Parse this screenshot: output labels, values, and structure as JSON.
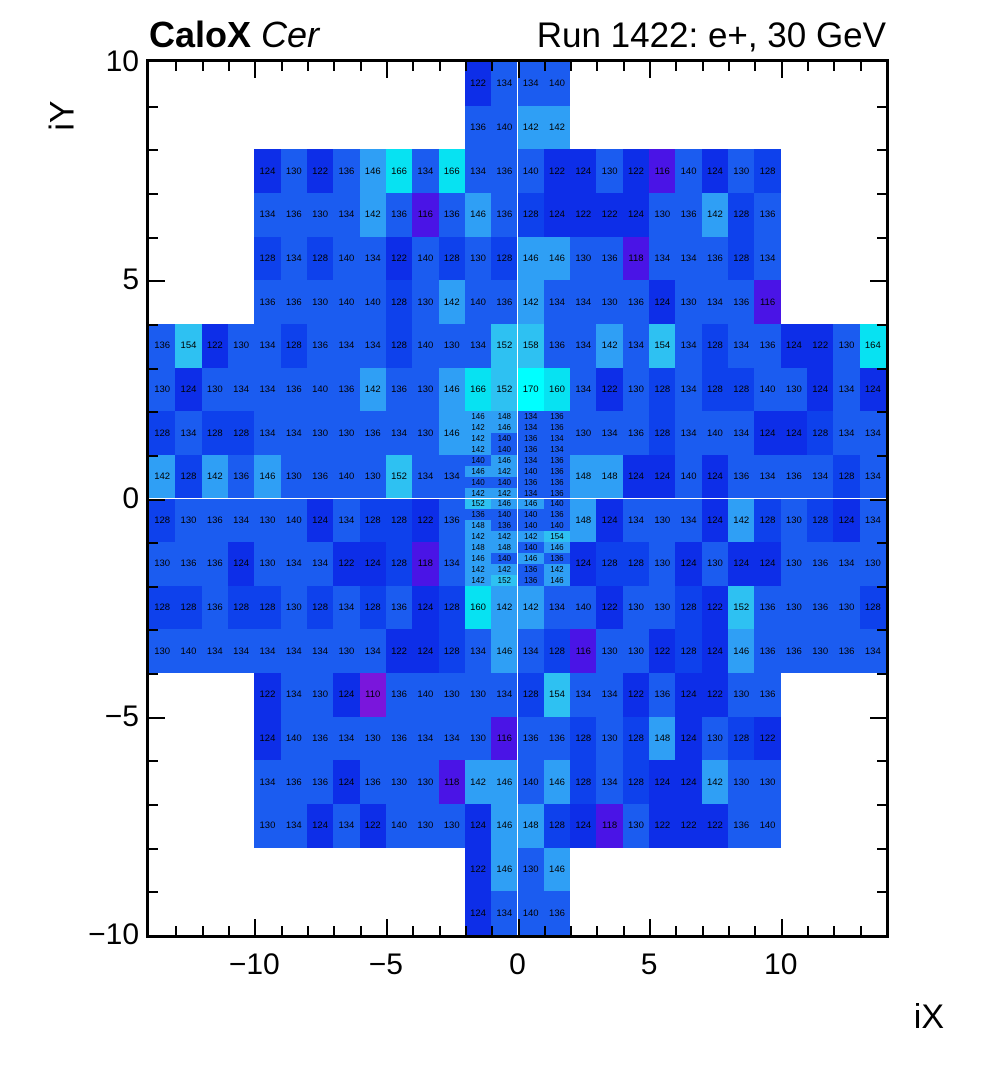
{
  "header": {
    "experiment": "CaloX",
    "detector": "Cer",
    "run_info": "Run 1422: e+, 30 GeV"
  },
  "chart_data": {
    "type": "heatmap",
    "title": "Run 1422: e+, 30 GeV",
    "xlabel": "iX",
    "ylabel": "iY",
    "xlim": [
      -14,
      14
    ],
    "ylim": [
      -10,
      10
    ],
    "grid": false,
    "x_tick_values": [
      -10,
      -5,
      0,
      5,
      10
    ],
    "x_tick_labels": [
      "−10",
      "−5",
      "0",
      "5",
      "10"
    ],
    "y_tick_values": [
      10,
      5,
      0,
      -5,
      -10
    ],
    "y_tick_labels": [
      "10",
      "5",
      "0",
      "−5",
      "−10"
    ],
    "value_text_color": "#000000",
    "frame_color": "#000000",
    "palette": [
      {
        "max": 113,
        "color": "#7A16DC"
      },
      {
        "max": 120,
        "color": "#4A14E6"
      },
      {
        "max": 126,
        "color": "#0D2EE8"
      },
      {
        "max": 129,
        "color": "#0E41EC"
      },
      {
        "max": 141,
        "color": "#1B5CF0"
      },
      {
        "max": 150,
        "color": "#2F9FF5"
      },
      {
        "max": 159,
        "color": "#2EC1F2"
      },
      {
        "max": 167,
        "color": "#07E2F2"
      },
      {
        "max": 9999,
        "color": "#00FFFF"
      }
    ],
    "regions": [
      {
        "name": "top-center",
        "x0": -2,
        "y0": 10,
        "cell_w": 1,
        "cell_h": 1,
        "rows": [
          [
            122,
            134,
            134,
            140
          ],
          [
            136,
            140,
            142,
            142
          ]
        ]
      },
      {
        "name": "upper-band",
        "x0": -10,
        "y0": 8,
        "cell_w": 1,
        "cell_h": 1,
        "rows": [
          [
            124,
            130,
            122,
            136,
            146,
            166,
            134,
            166,
            134,
            136,
            140,
            122,
            124,
            130,
            122,
            116,
            140,
            124,
            130,
            128
          ],
          [
            134,
            136,
            130,
            134,
            142,
            136,
            116,
            136,
            146,
            136,
            128,
            124,
            122,
            122,
            124,
            130,
            136,
            142,
            128,
            136
          ],
          [
            128,
            134,
            128,
            140,
            134,
            122,
            140,
            128,
            130,
            128,
            146,
            146,
            130,
            136,
            118,
            134,
            134,
            136,
            128,
            134
          ],
          [
            136,
            136,
            130,
            140,
            140,
            128,
            130,
            142,
            140,
            136,
            142,
            134,
            134,
            130,
            136,
            124,
            130,
            134,
            136,
            116
          ]
        ]
      },
      {
        "name": "wide-band-top",
        "x0": -14,
        "y0": 4,
        "cell_w": 1,
        "cell_h": 1,
        "rows": [
          [
            136,
            154,
            122,
            130,
            134,
            128,
            136,
            134,
            134,
            128,
            140,
            130,
            134,
            152,
            158,
            136,
            134,
            142,
            134,
            154,
            134,
            128,
            134,
            136,
            124,
            122,
            130,
            164
          ],
          [
            130,
            124,
            130,
            134,
            134,
            136,
            140,
            136,
            142,
            136,
            130,
            146,
            166,
            152,
            170,
            160,
            134,
            122,
            130,
            128,
            134,
            128,
            128,
            140,
            130,
            124,
            134,
            124
          ]
        ]
      },
      {
        "name": "mid-left",
        "x0": -14,
        "y0": 2,
        "cell_w": 1,
        "cell_h": 1,
        "rows": [
          [
            128,
            134,
            128,
            128,
            134,
            134,
            130,
            130,
            136,
            134,
            130,
            146
          ],
          [
            142,
            128,
            142,
            136,
            146,
            130,
            136,
            140,
            130,
            152,
            134,
            134
          ],
          [
            128,
            130,
            136,
            134,
            130,
            140,
            124,
            134,
            128,
            128,
            122,
            136
          ],
          [
            130,
            136,
            136,
            124,
            130,
            134,
            134,
            122,
            124,
            128,
            118,
            134
          ]
        ]
      },
      {
        "name": "mid-right",
        "x0": 2,
        "y0": 2,
        "cell_w": 1,
        "cell_h": 1,
        "rows": [
          [
            130,
            134,
            136,
            128,
            134,
            140,
            134,
            124,
            124,
            128,
            134,
            134
          ],
          [
            148,
            148,
            124,
            124,
            140,
            124,
            136,
            134,
            136,
            134,
            128,
            134
          ],
          [
            148,
            124,
            134,
            130,
            134,
            124,
            142,
            128,
            130,
            128,
            124,
            134
          ],
          [
            124,
            128,
            128,
            130,
            124,
            130,
            124,
            124,
            130,
            136,
            134,
            130
          ]
        ]
      },
      {
        "name": "center-fine",
        "x0": -2,
        "y0": 2,
        "cell_w": 1,
        "cell_h": 0.25,
        "rows": [
          [
            146,
            148,
            134,
            136
          ],
          [
            142,
            146,
            134,
            136
          ],
          [
            142,
            140,
            136,
            134
          ],
          [
            142,
            140,
            136,
            134
          ],
          [
            140,
            146,
            134,
            136
          ],
          [
            146,
            142,
            140,
            136
          ],
          [
            140,
            140,
            136,
            136
          ],
          [
            142,
            142,
            134,
            136
          ],
          [
            152,
            146,
            146,
            140
          ],
          [
            136,
            140,
            140,
            136
          ],
          [
            148,
            136,
            140,
            140
          ],
          [
            142,
            142,
            142,
            154
          ],
          [
            148,
            148,
            140,
            146
          ],
          [
            146,
            140,
            146,
            136
          ],
          [
            142,
            142,
            136,
            142
          ],
          [
            142,
            152,
            136,
            146
          ]
        ]
      },
      {
        "name": "wide-band-bottom",
        "x0": -14,
        "y0": -2,
        "cell_w": 1,
        "cell_h": 1,
        "rows": [
          [
            128,
            128,
            136,
            128,
            128,
            130,
            128,
            134,
            128,
            136,
            124,
            128,
            160,
            142,
            142,
            134,
            140,
            122,
            130,
            130,
            128,
            122,
            152,
            136,
            130,
            136,
            130,
            128
          ],
          [
            130,
            140,
            134,
            134,
            134,
            134,
            134,
            130,
            134,
            122,
            124,
            128,
            134,
            146,
            134,
            128,
            116,
            130,
            130,
            122,
            128,
            124,
            146,
            136,
            136,
            130,
            136,
            134
          ]
        ]
      },
      {
        "name": "lower-band",
        "x0": -10,
        "y0": -4,
        "cell_w": 1,
        "cell_h": 1,
        "rows": [
          [
            122,
            134,
            130,
            124,
            110,
            136,
            140,
            130,
            130,
            134,
            128,
            154,
            134,
            134,
            122,
            136,
            124,
            122,
            130,
            136
          ],
          [
            124,
            140,
            136,
            134,
            130,
            136,
            134,
            134,
            130,
            116,
            136,
            136,
            128,
            130,
            128,
            148,
            124,
            130,
            128,
            122
          ],
          [
            134,
            136,
            136,
            124,
            136,
            130,
            130,
            118,
            142,
            146,
            140,
            146,
            128,
            134,
            128,
            124,
            124,
            142,
            130,
            130
          ],
          [
            130,
            134,
            124,
            134,
            122,
            140,
            130,
            130,
            124,
            146,
            148,
            128,
            124,
            118,
            130,
            122,
            122,
            122,
            136,
            140
          ]
        ]
      },
      {
        "name": "bottom-center",
        "x0": -2,
        "y0": -8,
        "cell_w": 1,
        "cell_h": 1,
        "rows": [
          [
            122,
            146,
            130,
            146
          ],
          [
            124,
            134,
            140,
            136
          ]
        ]
      }
    ]
  }
}
